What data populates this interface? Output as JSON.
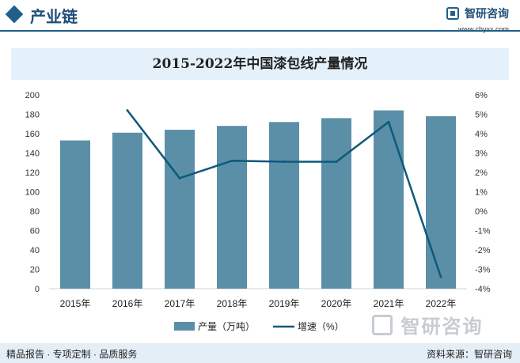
{
  "header": {
    "section_title": "产业链",
    "brand_name": "智研咨询",
    "brand_url": "www.chyxx.com"
  },
  "watermark": {
    "text": "智研咨询"
  },
  "footer": {
    "left_text": "精品报告 · 专项定制 · 品质服务",
    "source_text": "资料来源：智研咨询"
  },
  "colors": {
    "bar": "#5b8fa8",
    "line": "#0d5a7a",
    "accent": "#1f5f8b"
  },
  "chart_data": {
    "type": "bar",
    "title": "2015-2022年中国漆包线产量情况",
    "categories": [
      "2015年",
      "2016年",
      "2017年",
      "2018年",
      "2019年",
      "2020年",
      "2021年",
      "2022年"
    ],
    "series": [
      {
        "name": "产量（万吨）",
        "type": "bar",
        "axis": "left",
        "values": [
          153,
          161,
          164,
          168,
          172,
          176,
          184,
          178
        ]
      },
      {
        "name": "增速（%）",
        "type": "line",
        "axis": "right",
        "values": [
          null,
          5.2,
          1.7,
          2.6,
          2.55,
          2.55,
          4.6,
          -3.4
        ]
      }
    ],
    "y_left": {
      "ylim": [
        0,
        200
      ],
      "ticks": [
        "0",
        "20",
        "40",
        "60",
        "80",
        "100",
        "120",
        "140",
        "160",
        "180",
        "200"
      ]
    },
    "y_right": {
      "ylim": [
        -4,
        6
      ],
      "ticks": [
        "-4%",
        "-3%",
        "-2%",
        "-1%",
        "0%",
        "1%",
        "2%",
        "3%",
        "4%",
        "5%",
        "6%"
      ]
    },
    "grid": false,
    "legend_position": "bottom"
  }
}
